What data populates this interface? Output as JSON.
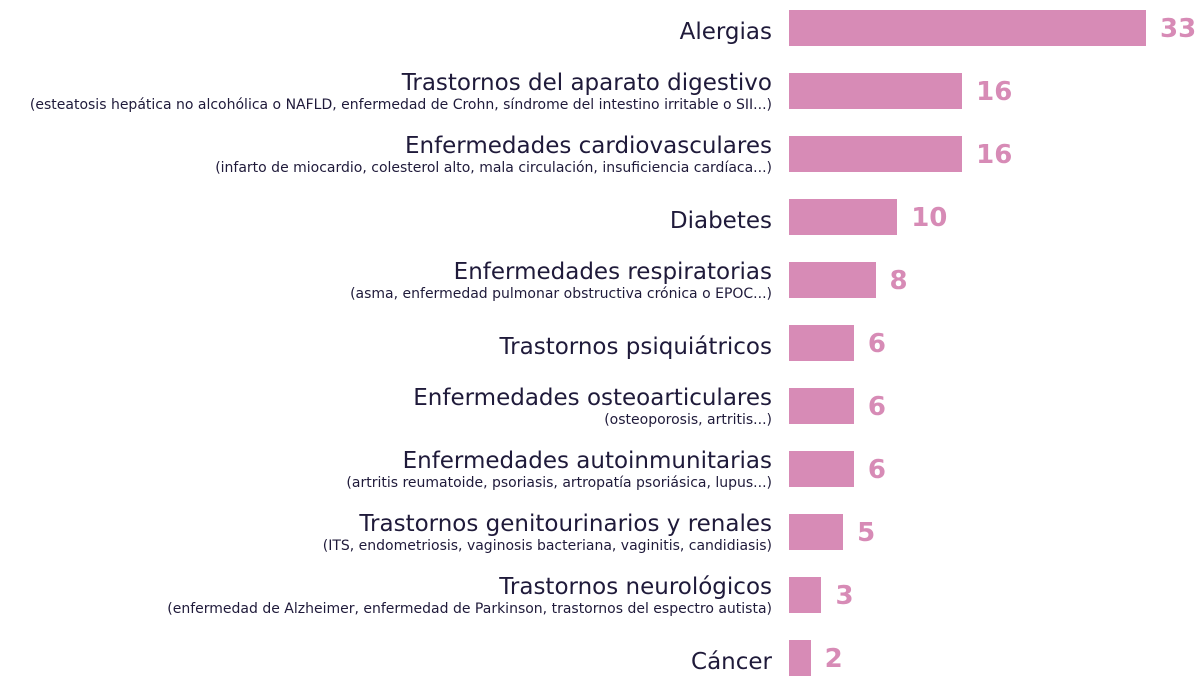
{
  "chart_data": {
    "type": "bar",
    "orientation": "horizontal",
    "color": "#d78bb6",
    "categories": [
      "Alergias",
      "Trastornos del aparato digestivo",
      "Enfermedades cardiovasculares",
      "Diabetes",
      "Enfermedades respiratorias",
      "Trastornos psiquiátricos",
      "Enfermedades osteoarticulares",
      "Enfermedades autoinmunitarias",
      "Trastornos genitourinarios y renales",
      "Trastornos neurológicos",
      "Cáncer"
    ],
    "details": [
      null,
      "(esteatosis hepática no alcohólica o NAFLD, enfermedad de Crohn, síndrome del intestino irritable o SII...)",
      "(infarto de miocardio, colesterol alto, mala circulación, insuficiencia cardíaca...)",
      null,
      "(asma, enfermedad pulmonar obstructiva crónica o EPOC...)",
      null,
      "(osteoporosis, artritis...)",
      "(artritis reumatoide, psoriasis, artropatía psoriásica, lupus...)",
      "(ITS, endometriosis, vaginosis bacteriana, vaginitis, candidiasis)",
      "(enfermedad de Alzheimer, enfermedad de Parkinson, trastornos del espectro autista)",
      null
    ],
    "values": [
      33,
      16,
      16,
      10,
      8,
      6,
      6,
      6,
      5,
      3,
      2
    ]
  }
}
